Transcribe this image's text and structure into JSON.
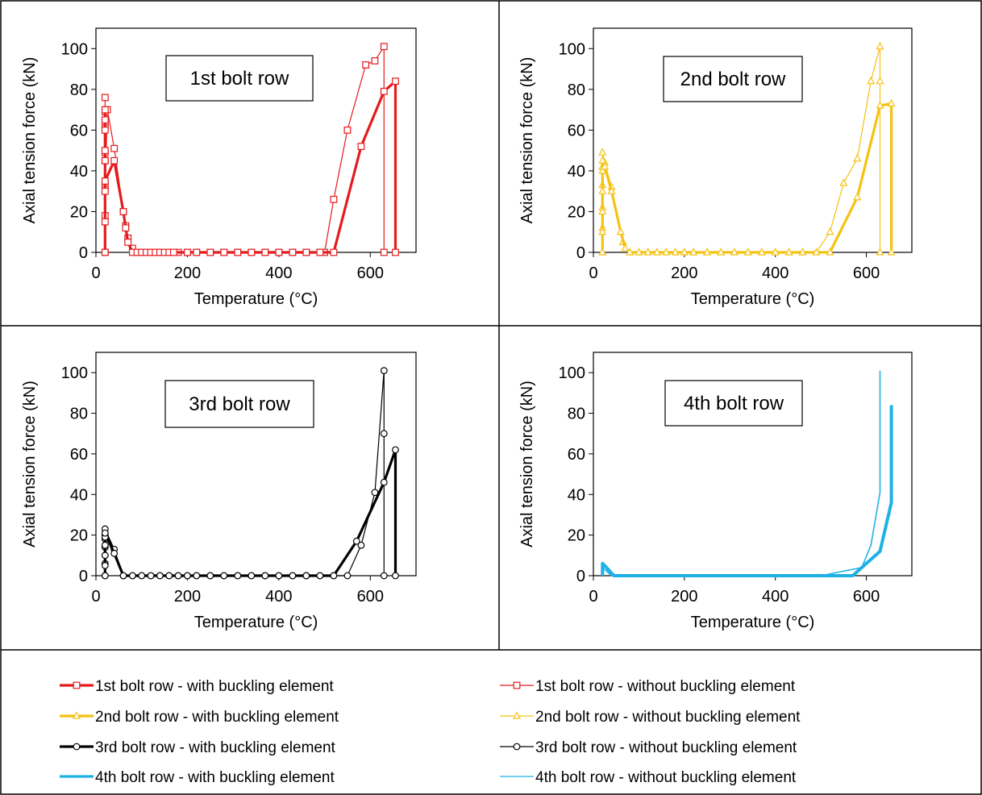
{
  "colors": {
    "red": "#e41a1c",
    "yellow": "#f5c211",
    "black": "#000000",
    "blue": "#1eb1e6"
  },
  "legend": {
    "items": [
      {
        "label": "1st bolt row - with buckling element",
        "color": "#e41a1c",
        "marker": "square",
        "weight": "thick"
      },
      {
        "label": "1st bolt row - without buckling element",
        "color": "#e41a1c",
        "marker": "square",
        "weight": "thin"
      },
      {
        "label": "2nd bolt row - with buckling element",
        "color": "#f5c211",
        "marker": "triangle",
        "weight": "thick"
      },
      {
        "label": "2nd bolt row - without buckling element",
        "color": "#f5c211",
        "marker": "triangle",
        "weight": "thin"
      },
      {
        "label": "3rd bolt row - with buckling element",
        "color": "#000000",
        "marker": "circle",
        "weight": "thick"
      },
      {
        "label": "3rd bolt row - without buckling element",
        "color": "#000000",
        "marker": "circle",
        "weight": "thin"
      },
      {
        "label": "4th bolt row - with buckling element",
        "color": "#1eb1e6",
        "marker": "none",
        "weight": "thick"
      },
      {
        "label": "4th bolt row - without buckling element",
        "color": "#1eb1e6",
        "marker": "none",
        "weight": "thin"
      }
    ]
  },
  "chart_data": [
    {
      "type": "line",
      "title": "1st bolt row",
      "xlabel": "Temperature (°C)",
      "ylabel": "Axial tension force (kN)",
      "xlim": [
        0,
        700
      ],
      "ylim": [
        0,
        110
      ],
      "xticks": [
        "0",
        "200",
        "400",
        "600"
      ],
      "yticks": [
        "0",
        "20",
        "40",
        "60",
        "80",
        "100"
      ],
      "grid": false,
      "color": "#e41a1c",
      "marker": "square",
      "series": [
        {
          "name": "1st bolt row - with buckling element",
          "weight": "thick",
          "x": [
            20,
            20,
            20,
            20,
            20,
            20,
            20,
            20,
            20,
            40,
            60,
            65,
            70,
            80,
            90,
            100,
            110,
            120,
            130,
            140,
            150,
            160,
            170,
            200,
            220,
            250,
            280,
            310,
            340,
            370,
            400,
            430,
            460,
            490,
            520,
            580,
            630,
            655,
            655
          ],
          "y": [
            0,
            15,
            30,
            45,
            60,
            70,
            65,
            50,
            35,
            45,
            20,
            12,
            5,
            0,
            0,
            0,
            0,
            0,
            0,
            0,
            0,
            0,
            0,
            0,
            0,
            0,
            0,
            0,
            0,
            0,
            0,
            0,
            0,
            0,
            0,
            52,
            79,
            84,
            0
          ]
        },
        {
          "name": "1st bolt row - without buckling element",
          "weight": "thin",
          "x": [
            20,
            20,
            20,
            20,
            20,
            20,
            20,
            20,
            20,
            20,
            25,
            40,
            60,
            65,
            70,
            80,
            100,
            120,
            140,
            160,
            180,
            200,
            220,
            250,
            280,
            310,
            340,
            370,
            400,
            430,
            460,
            490,
            500,
            520,
            550,
            590,
            610,
            630,
            630
          ],
          "y": [
            0,
            18,
            33,
            49,
            61,
            76,
            69,
            64,
            45,
            31,
            70,
            51,
            20,
            13,
            7,
            2,
            0,
            0,
            0,
            0,
            0,
            0,
            0,
            0,
            0,
            0,
            0,
            0,
            0,
            0,
            0,
            0,
            0,
            26,
            60,
            92,
            94,
            101,
            0
          ]
        }
      ]
    },
    {
      "type": "line",
      "title": "2nd bolt row",
      "xlabel": "Temperature (°C)",
      "ylabel": "Axial tension force (kN)",
      "xlim": [
        0,
        700
      ],
      "ylim": [
        0,
        110
      ],
      "xticks": [
        "0",
        "200",
        "400",
        "600"
      ],
      "yticks": [
        "0",
        "20",
        "40",
        "60",
        "80",
        "100"
      ],
      "grid": false,
      "color": "#f5c211",
      "marker": "triangle",
      "series": [
        {
          "name": "2nd bolt row - with buckling element",
          "weight": "thick",
          "x": [
            20,
            20,
            20,
            20,
            20,
            20,
            25,
            40,
            60,
            70,
            80,
            100,
            120,
            140,
            160,
            180,
            200,
            220,
            250,
            280,
            310,
            340,
            370,
            400,
            430,
            460,
            490,
            520,
            580,
            630,
            655,
            655
          ],
          "y": [
            0,
            10,
            20,
            30,
            40,
            45,
            42,
            30,
            10,
            2,
            0,
            0,
            0,
            0,
            0,
            0,
            0,
            0,
            0,
            0,
            0,
            0,
            0,
            0,
            0,
            0,
            0,
            0,
            27,
            72,
            73,
            0
          ]
        },
        {
          "name": "2nd bolt row - without buckling element",
          "weight": "thin",
          "x": [
            20,
            20,
            20,
            20,
            20,
            20,
            25,
            40,
            60,
            65,
            80,
            100,
            120,
            140,
            160,
            180,
            200,
            220,
            250,
            280,
            310,
            340,
            370,
            400,
            430,
            460,
            490,
            520,
            550,
            580,
            610,
            630,
            630,
            630
          ],
          "y": [
            0,
            12,
            22,
            33,
            42,
            49,
            44,
            32,
            10,
            5,
            0,
            0,
            0,
            0,
            0,
            0,
            0,
            0,
            0,
            0,
            0,
            0,
            0,
            0,
            0,
            0,
            0,
            10,
            34,
            46,
            84,
            101,
            84,
            0
          ]
        }
      ]
    },
    {
      "type": "line",
      "title": "3rd bolt row",
      "xlabel": "Temperature (°C)",
      "ylabel": "Axial tension force (kN)",
      "xlim": [
        0,
        700
      ],
      "ylim": [
        0,
        110
      ],
      "xticks": [
        "0",
        "200",
        "400",
        "600"
      ],
      "yticks": [
        "0",
        "20",
        "40",
        "60",
        "80",
        "100"
      ],
      "grid": false,
      "color": "#000000",
      "marker": "circle",
      "series": [
        {
          "name": "3rd bolt row - with buckling element",
          "weight": "thick",
          "x": [
            20,
            20,
            20,
            20,
            20,
            20,
            40,
            60,
            80,
            100,
            120,
            140,
            160,
            180,
            200,
            220,
            250,
            280,
            310,
            340,
            370,
            400,
            430,
            460,
            490,
            520,
            570,
            630,
            655,
            655
          ],
          "y": [
            0,
            5,
            10,
            15,
            19,
            21,
            11,
            0,
            0,
            0,
            0,
            0,
            0,
            0,
            0,
            0,
            0,
            0,
            0,
            0,
            0,
            0,
            0,
            0,
            0,
            0,
            17,
            46,
            62,
            0
          ]
        },
        {
          "name": "3rd bolt row - without buckling element",
          "weight": "thin",
          "x": [
            20,
            20,
            20,
            20,
            20,
            20,
            20,
            40,
            60,
            80,
            100,
            120,
            140,
            160,
            180,
            200,
            220,
            250,
            280,
            310,
            340,
            370,
            400,
            430,
            460,
            490,
            520,
            550,
            580,
            610,
            630,
            630,
            630
          ],
          "y": [
            0,
            6,
            10,
            14,
            18,
            20,
            23,
            13,
            0,
            0,
            0,
            0,
            0,
            0,
            0,
            0,
            0,
            0,
            0,
            0,
            0,
            0,
            0,
            0,
            0,
            0,
            0,
            0,
            15,
            41,
            101,
            70,
            0
          ]
        }
      ]
    },
    {
      "type": "line",
      "title": "4th bolt row",
      "xlabel": "Temperature (°C)",
      "ylabel": "Axial tension force (kN)",
      "xlim": [
        0,
        700
      ],
      "ylim": [
        0,
        110
      ],
      "xticks": [
        "0",
        "200",
        "400",
        "600"
      ],
      "yticks": [
        "0",
        "20",
        "40",
        "60",
        "80",
        "100"
      ],
      "grid": false,
      "color": "#1eb1e6",
      "marker": "none",
      "series": [
        {
          "name": "4th bolt row - with buckling element",
          "weight": "thick",
          "x": [
            20,
            20,
            25,
            45,
            100,
            200,
            300,
            400,
            500,
            570,
            630,
            655,
            655
          ],
          "y": [
            0,
            6,
            5,
            0,
            0,
            0,
            0,
            0,
            0,
            0,
            12,
            36,
            84
          ]
        },
        {
          "name": "4th bolt row - without buckling element",
          "weight": "thin",
          "x": [
            20,
            20,
            40,
            100,
            200,
            300,
            400,
            500,
            590,
            610,
            630,
            630
          ],
          "y": [
            0,
            4,
            0,
            0,
            0,
            0,
            0,
            0,
            4,
            15,
            41,
            101
          ]
        }
      ]
    }
  ]
}
